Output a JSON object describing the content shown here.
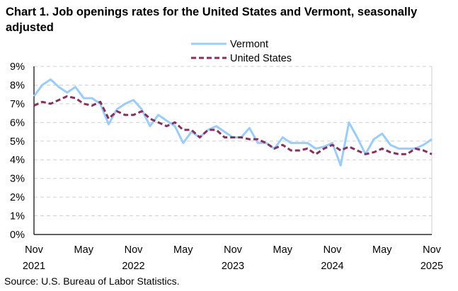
{
  "chart_data": {
    "type": "line",
    "title": "Chart 1. Job openings rates for the United States and Vermont, seasonally adjusted",
    "source": "Source: U.S. Bureau of Labor Statistics.",
    "xlabel": "",
    "ylabel": "",
    "ylim": [
      0,
      9
    ],
    "grid": true,
    "legend_placement": "top-center",
    "y_ticks": [
      "0%",
      "1%",
      "2%",
      "3%",
      "4%",
      "5%",
      "6%",
      "7%",
      "8%",
      "9%"
    ],
    "x_ticks": [
      {
        "month": "Nov",
        "year": "2021"
      },
      {
        "month": "May",
        "year": ""
      },
      {
        "month": "Nov",
        "year": "2022"
      },
      {
        "month": "May",
        "year": ""
      },
      {
        "month": "Nov",
        "year": "2023"
      },
      {
        "month": "May",
        "year": ""
      },
      {
        "month": "Nov",
        "year": "2024"
      },
      {
        "month": "May",
        "year": ""
      },
      {
        "month": "Nov",
        "year": "2025"
      }
    ],
    "x_range": [
      "Nov 2021",
      "Nov 2025"
    ],
    "series": [
      {
        "name": "Vermont",
        "color": "#99ccff",
        "style": "solid",
        "values": [
          7.4,
          8.0,
          8.3,
          7.9,
          7.6,
          7.9,
          7.3,
          7.3,
          7.0,
          5.9,
          6.7,
          7.0,
          7.2,
          6.7,
          5.8,
          6.4,
          6.1,
          5.8,
          4.9,
          5.5,
          5.2,
          5.6,
          5.8,
          5.5,
          5.2,
          5.2,
          5.7,
          4.9,
          4.9,
          4.6,
          5.2,
          4.9,
          4.9,
          4.9,
          4.6,
          4.7,
          4.9,
          3.7,
          6.0,
          5.2,
          4.3,
          5.1,
          5.4,
          4.8,
          4.6,
          4.6,
          4.6,
          4.8,
          5.1
        ]
      },
      {
        "name": "United States",
        "color": "#8b2f5c",
        "style": "dashed",
        "values": [
          6.9,
          7.1,
          7.0,
          7.2,
          7.4,
          7.3,
          7.0,
          6.9,
          7.1,
          6.2,
          6.6,
          6.4,
          6.4,
          6.6,
          6.2,
          6.0,
          5.8,
          6.0,
          5.6,
          5.6,
          5.2,
          5.6,
          5.6,
          5.2,
          5.2,
          5.2,
          5.1,
          5.1,
          4.9,
          4.6,
          4.8,
          4.5,
          4.5,
          4.6,
          4.3,
          4.6,
          4.8,
          4.5,
          4.7,
          4.5,
          4.3,
          4.4,
          4.6,
          4.4,
          4.3,
          4.3,
          4.6,
          4.5,
          4.3
        ]
      }
    ]
  }
}
